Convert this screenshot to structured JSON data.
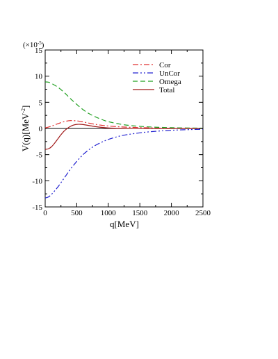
{
  "chart_data": {
    "type": "line",
    "title": "",
    "xlabel": "q[MeV]",
    "ylabel_main": "V(q)[MeV",
    "ylabel_sup": "-2",
    "ylabel_close": "]",
    "y_scale_prefix": "(×10",
    "y_scale_exp": "-5",
    "y_scale_suffix": ")",
    "xlim": [
      0,
      2500
    ],
    "ylim": [
      -15,
      15
    ],
    "x_ticks": [
      0,
      500,
      1000,
      1500,
      2000,
      2500
    ],
    "x_tick_labels": [
      "0",
      "500",
      "1000",
      "1500",
      "2000",
      "2500"
    ],
    "y_ticks": [
      -15,
      -10,
      -5,
      0,
      5,
      10,
      15
    ],
    "y_tick_labels": [
      "-15",
      "-10",
      "-5",
      "0",
      "5",
      "10",
      "15"
    ],
    "legend_position": "top-right",
    "zero_line": true,
    "series": [
      {
        "name": "Cor",
        "color": "#e03030",
        "dash": "8,3,2,3",
        "x": [
          0,
          100,
          200,
          300,
          400,
          500,
          600,
          700,
          800,
          900,
          1000,
          1200,
          1400,
          1600,
          1800,
          2000,
          2200,
          2500
        ],
        "y": [
          0.1,
          0.45,
          0.9,
          1.3,
          1.5,
          1.45,
          1.25,
          1.0,
          0.78,
          0.6,
          0.47,
          0.3,
          0.2,
          0.13,
          0.08,
          0.05,
          0.03,
          0.02
        ]
      },
      {
        "name": "UnCor",
        "color": "#2020d0",
        "dash": "8,3,2,3,2,3",
        "x": [
          0,
          50,
          100,
          200,
          300,
          400,
          500,
          600,
          700,
          800,
          900,
          1000,
          1200,
          1400,
          1600,
          1800,
          2000,
          2200,
          2500
        ],
        "y": [
          -13.3,
          -13.1,
          -12.6,
          -11.2,
          -9.5,
          -7.8,
          -6.3,
          -5.0,
          -4.0,
          -3.2,
          -2.6,
          -2.1,
          -1.4,
          -1.0,
          -0.7,
          -0.5,
          -0.35,
          -0.25,
          -0.15
        ]
      },
      {
        "name": "Omega",
        "color": "#20a020",
        "dash": "7,4",
        "x": [
          0,
          50,
          100,
          200,
          300,
          400,
          500,
          600,
          700,
          800,
          900,
          1000,
          1200,
          1400,
          1600,
          1800,
          2000,
          2200,
          2500
        ],
        "y": [
          8.9,
          8.85,
          8.6,
          7.9,
          6.9,
          5.7,
          4.6,
          3.6,
          2.8,
          2.2,
          1.7,
          1.3,
          0.8,
          0.5,
          0.33,
          0.22,
          0.15,
          0.1,
          0.06
        ]
      },
      {
        "name": "Total",
        "color": "#a01818",
        "dash": "",
        "x": [
          0,
          50,
          100,
          150,
          200,
          250,
          300,
          350,
          400,
          450,
          500,
          550,
          600,
          700,
          800,
          900,
          1000,
          1100,
          1200,
          1400,
          1600,
          2000,
          2500
        ],
        "y": [
          -4.0,
          -3.9,
          -3.5,
          -2.8,
          -2.0,
          -1.2,
          -0.5,
          0.0,
          0.4,
          0.65,
          0.78,
          0.8,
          0.75,
          0.55,
          0.35,
          0.2,
          0.1,
          0.05,
          0.03,
          0.01,
          0.0,
          0.0,
          0.0
        ]
      }
    ]
  }
}
